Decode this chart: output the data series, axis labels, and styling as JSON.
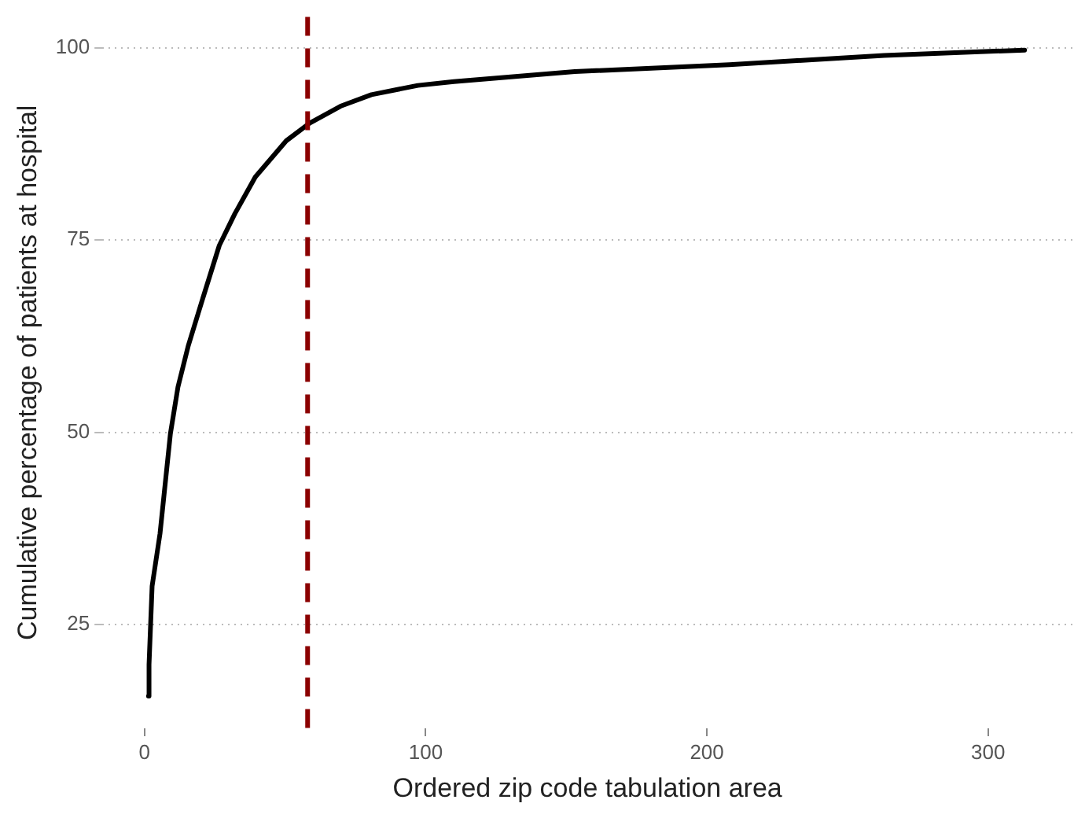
{
  "chart_data": {
    "type": "line",
    "xlabel": "Ordered zip code tabulation area",
    "ylabel": "Cumulative percentage of patients at hospital",
    "xlim": [
      -15,
      330
    ],
    "ylim": [
      11.5,
      104
    ],
    "xticks": [
      0,
      100,
      200,
      300
    ],
    "yticks": [
      25,
      50,
      75,
      100
    ],
    "grid": "y",
    "legend": false,
    "marker": "none",
    "line_style": "solid",
    "series": [
      {
        "color": "#000000",
        "x": [
          1.4,
          1.6,
          2.7,
          5.5,
          9.2,
          11.9,
          15.6,
          20.2,
          26.6,
          32.1,
          39.4,
          50.4,
          58.7,
          69.7,
          80.7,
          97.2,
          110,
          153,
          208,
          263,
          313
        ],
        "values": [
          15.7,
          19.8,
          30,
          36.8,
          49.8,
          55.9,
          61.3,
          66.8,
          74.3,
          78.4,
          83.2,
          87.9,
          90.2,
          92.4,
          93.9,
          95.1,
          95.6,
          96.9,
          97.8,
          99.0,
          99.7
        ]
      }
    ],
    "ref_lines": [
      {
        "axis": "x",
        "value": 58,
        "color": "#8b0000",
        "line_style": "dashed"
      }
    ]
  }
}
